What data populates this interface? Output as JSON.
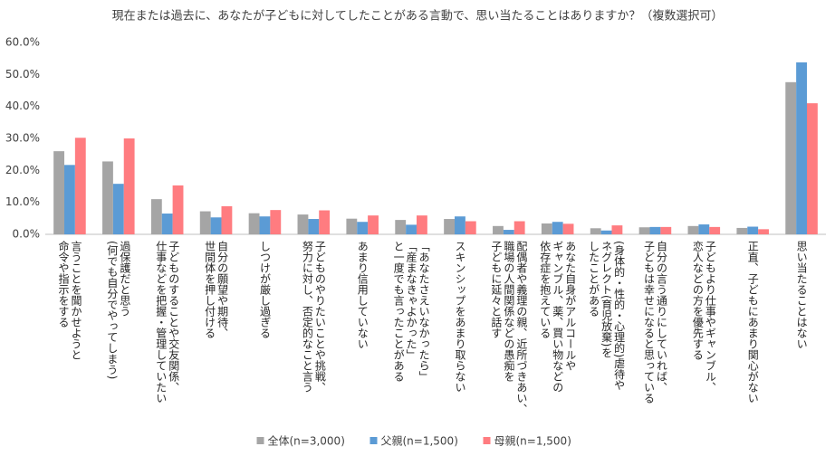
{
  "chart_data": {
    "type": "bar",
    "title": "現在または過去に、あなたが子どもに対してしたことがある言動で、思い当たることはありますか？（複数選択可）",
    "categories": [
      "言うことを聞かせようと\n命令や指示をする",
      "過保護だと思う\n(何でも自分でやってしまう)",
      "子どものすることや交友関係、\n仕事などを把握・管理していたい",
      "自分の願望や期待、\n世間体を押し付ける",
      "しつけが厳し過ぎる",
      "子どものやりたいことや挑戦、\n努力に対し、否定的なこと言う",
      "あまり信用していない",
      "「あなたさえいなかったら」\n「産まなきゃよかった」\nと一度でも言ったことがある",
      "スキンシップをあまり取らない",
      "配偶者や義理の親、近所づきあい、\n職場の人間関係などの愚痴を\n子どもに延々と話す",
      "あなた自身がアルコールや\nギャンブル、薬、買い物などの\n依存症を抱えている",
      "(身体的・性的・心理的)虐待や\nネグレクト(育児放棄)を\nしたことがある",
      "自分の言う通りにしていれば、\n子どもは幸せになると思っている",
      "子どもより仕事やギャンブル、\n恋人などの方を優先する",
      "正直、子どもにあまり関心がない",
      "思い当たることはない"
    ],
    "series": [
      {
        "name": "全体(n=3,000)",
        "color": "#a5a5a5",
        "values": [
          26.0,
          22.8,
          11.0,
          7.2,
          6.6,
          6.2,
          4.9,
          4.5,
          4.8,
          2.6,
          3.4,
          1.9,
          2.2,
          2.6,
          2.0,
          47.6
        ]
      },
      {
        "name": "父親(n=1,500)",
        "color": "#5b9bd5",
        "values": [
          21.7,
          15.8,
          6.5,
          5.3,
          5.6,
          4.8,
          3.9,
          3.0,
          5.6,
          1.4,
          3.9,
          1.2,
          2.3,
          3.1,
          2.4,
          53.8
        ]
      },
      {
        "name": "母親(n=1,500)",
        "color": "#ff7c80",
        "values": [
          30.2,
          30.0,
          15.3,
          8.8,
          7.6,
          7.5,
          5.9,
          5.9,
          4.1,
          4.1,
          3.3,
          2.8,
          2.3,
          2.3,
          1.6,
          41.0
        ]
      }
    ],
    "ylim": [
      0,
      60
    ],
    "yticks": [
      {
        "value": 0,
        "label": "0.0%"
      },
      {
        "value": 10,
        "label": "10.0%"
      },
      {
        "value": 20,
        "label": "20.0%"
      },
      {
        "value": 30,
        "label": "30.0%"
      },
      {
        "value": 40,
        "label": "40.0%"
      },
      {
        "value": 50,
        "label": "50.0%"
      },
      {
        "value": 60,
        "label": "60.0%"
      }
    ],
    "grid": false,
    "legend": "bottom"
  }
}
